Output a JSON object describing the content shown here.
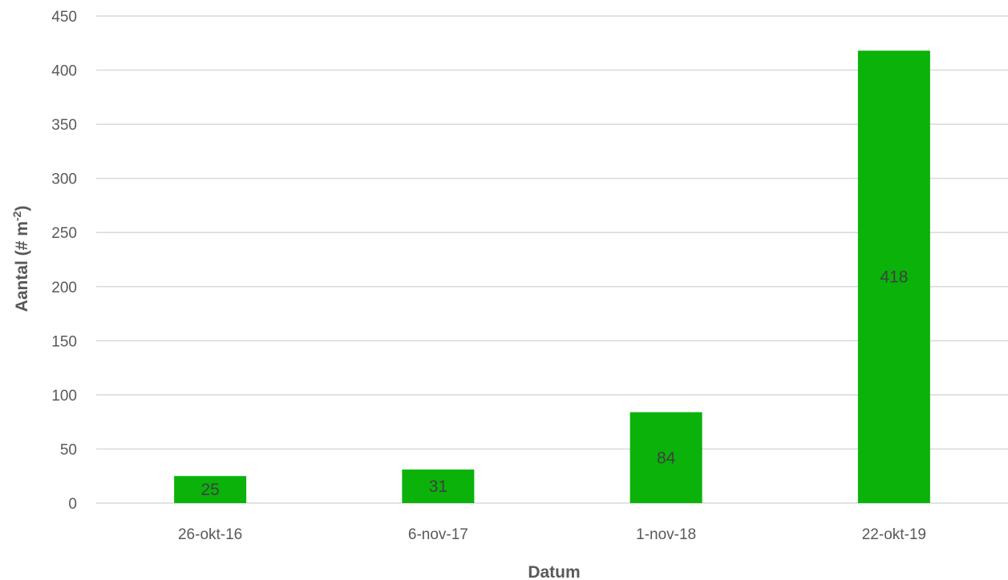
{
  "chart_data": {
    "type": "bar",
    "title": "",
    "xlabel": "Datum",
    "ylabel": "Aantal (# m-2)",
    "ylabel_parts": {
      "main": "Aantal (# m",
      "superscript": "-2",
      "close": ")"
    },
    "categories": [
      "26-okt-16",
      "6-nov-17",
      "1-nov-18",
      "22-okt-19"
    ],
    "series": [
      {
        "values": [
          25,
          31,
          84,
          418
        ],
        "color": "#0ab20a"
      }
    ],
    "data_labels": [
      "25",
      "31",
      "84",
      "418"
    ],
    "ylim": [
      0,
      450
    ],
    "yticks": [
      0,
      50,
      100,
      150,
      200,
      250,
      300,
      350,
      400,
      450
    ],
    "grid": true,
    "legend": "none",
    "colors": {
      "bar": "#0ab20a",
      "grid": "#d9d9d9",
      "text": "#595959",
      "label": "#404040"
    }
  }
}
